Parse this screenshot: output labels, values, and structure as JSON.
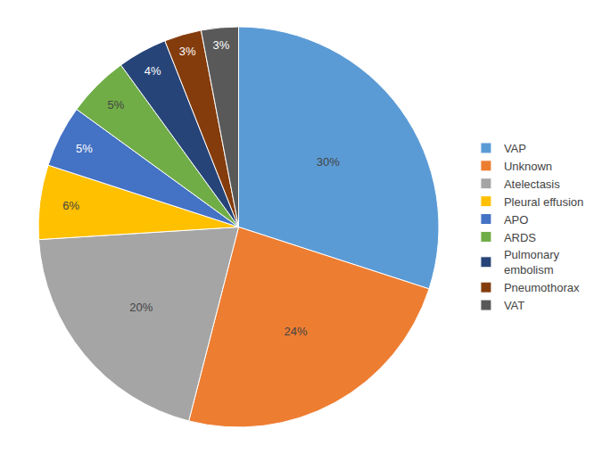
{
  "chart_data": {
    "type": "pie",
    "categories": [
      "VAP",
      "Unknown",
      "Atelectasis",
      "Pleural effusion",
      "APO",
      "ARDS",
      "Pulmonary\nembolism",
      "Pneumothorax",
      "VAT"
    ],
    "values": [
      30,
      24,
      20,
      6,
      5,
      5,
      4,
      3,
      3
    ],
    "value_labels": [
      "30%",
      "24%",
      "20%",
      "6%",
      "5%",
      "5%",
      "4%",
      "3%",
      "3%"
    ],
    "colors": [
      "#5B9BD5",
      "#ED7D31",
      "#A5A5A5",
      "#FFC000",
      "#4472C4",
      "#70AD47",
      "#264478",
      "#843C0C",
      "#595959"
    ],
    "data_labels": true,
    "legend": "right"
  }
}
